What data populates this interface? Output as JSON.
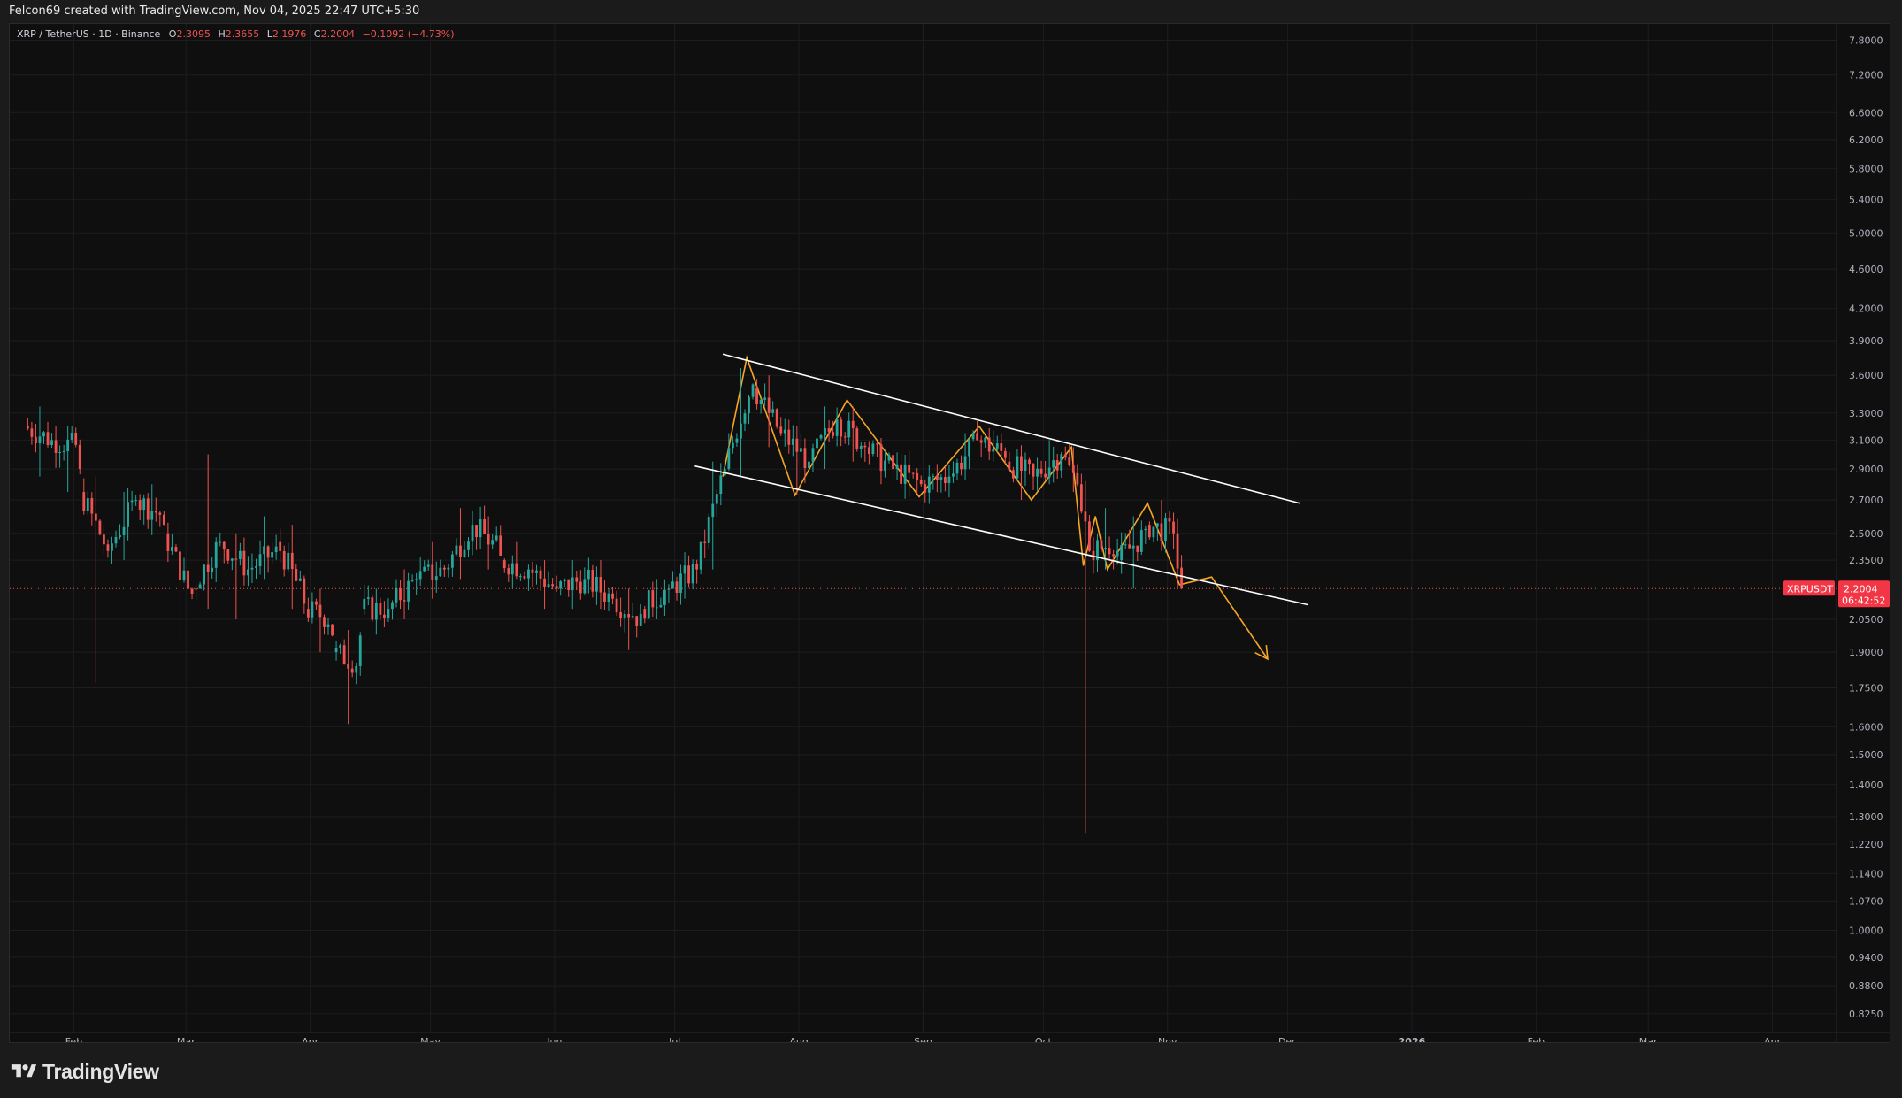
{
  "header": {
    "created_text": "Felcon69 created with TradingView.com, Nov 04, 2025 22:47 UTC+5:30"
  },
  "legend": {
    "symbol_text": "XRP / TetherUS · 1D · Binance",
    "o_label": "O",
    "o_value": "2.3095",
    "h_label": "H",
    "h_value": "2.3655",
    "l_label": "L",
    "l_value": "2.1976",
    "c_label": "C",
    "c_value": "2.2004",
    "change_text": "−0.1092 (−4.73%)"
  },
  "price_tag": {
    "symbol": "XRPUSDT",
    "price": "2.2004",
    "countdown": "06:42:52"
  },
  "footer": {
    "brand": "TradingView"
  },
  "colors": {
    "up": "#26a69a",
    "down": "#ef5350",
    "pattern": "#f5a623",
    "channel": "#ffffff",
    "price_line": "#ef5350"
  },
  "chart_data": {
    "type": "candlestick",
    "scale": "log",
    "symbol": "XRPUSDT",
    "interval": "1D",
    "exchange": "Binance",
    "x_tick_labels": [
      "Feb",
      "Mar",
      "Apr",
      "May",
      "Jun",
      "Jul",
      "Aug",
      "Sep",
      "Oct",
      "Nov",
      "Dec",
      "2026",
      "Feb",
      "Mar",
      "Apr"
    ],
    "x_tick_dates": [
      "2025-02-01",
      "2025-03-01",
      "2025-04-01",
      "2025-05-01",
      "2025-06-01",
      "2025-07-01",
      "2025-08-01",
      "2025-09-01",
      "2025-10-01",
      "2025-11-01",
      "2025-12-01",
      "2026-01-01",
      "2026-02-01",
      "2026-03-01",
      "2026-04-01"
    ],
    "y_tick_labels": [
      "7.8000",
      "7.2000",
      "6.6000",
      "6.2000",
      "5.8000",
      "5.4000",
      "5.0000",
      "4.6000",
      "4.2000",
      "3.9000",
      "3.6000",
      "3.3000",
      "3.1000",
      "2.9000",
      "2.7000",
      "2.5000",
      "2.3500",
      "2.0500",
      "1.9000",
      "1.7500",
      "1.6000",
      "1.5000",
      "1.4000",
      "1.3000",
      "1.2200",
      "1.1400",
      "1.0700",
      "1.0000",
      "0.9400",
      "0.8800",
      "0.8250"
    ],
    "y_range": [
      0.79,
      8.1
    ],
    "x_range": [
      "2025-01-16",
      "2026-04-17"
    ],
    "grid": true,
    "last_price": 2.2004,
    "candles_approx": [
      [
        "2025-01-20",
        3.2,
        3.35,
        2.85,
        3.1
      ],
      [
        "2025-01-27",
        3.1,
        3.2,
        2.75,
        3.05
      ],
      [
        "2025-02-03",
        2.75,
        2.85,
        1.77,
        2.4
      ],
      [
        "2025-02-10",
        2.4,
        2.75,
        2.35,
        2.7
      ],
      [
        "2025-02-17",
        2.7,
        2.8,
        2.5,
        2.6
      ],
      [
        "2025-02-24",
        2.5,
        2.55,
        1.95,
        2.15
      ],
      [
        "2025-03-03",
        2.2,
        3.0,
        2.1,
        2.45
      ],
      [
        "2025-03-10",
        2.45,
        2.5,
        2.05,
        2.3
      ],
      [
        "2025-03-17",
        2.3,
        2.6,
        2.25,
        2.4
      ],
      [
        "2025-03-24",
        2.45,
        2.55,
        2.1,
        2.15
      ],
      [
        "2025-03-31",
        2.1,
        2.2,
        1.9,
        2.05
      ],
      [
        "2025-04-07",
        1.9,
        2.0,
        1.61,
        1.85
      ],
      [
        "2025-04-14",
        2.1,
        2.2,
        2.05,
        2.1
      ],
      [
        "2025-04-21",
        2.1,
        2.3,
        2.05,
        2.25
      ],
      [
        "2025-04-28",
        2.25,
        2.45,
        2.15,
        2.3
      ],
      [
        "2025-05-05",
        2.3,
        2.65,
        2.25,
        2.55
      ],
      [
        "2025-05-12",
        2.55,
        2.6,
        2.3,
        2.4
      ],
      [
        "2025-05-19",
        2.35,
        2.45,
        2.25,
        2.3
      ],
      [
        "2025-05-26",
        2.3,
        2.35,
        2.1,
        2.2
      ],
      [
        "2025-06-02",
        2.2,
        2.35,
        2.1,
        2.25
      ],
      [
        "2025-06-09",
        2.25,
        2.35,
        2.1,
        2.15
      ],
      [
        "2025-06-16",
        2.15,
        2.2,
        1.91,
        2.05
      ],
      [
        "2025-06-23",
        2.1,
        2.25,
        2.05,
        2.2
      ],
      [
        "2025-06-30",
        2.2,
        2.35,
        2.15,
        2.3
      ],
      [
        "2025-07-07",
        2.3,
        2.95,
        2.3,
        2.9
      ],
      [
        "2025-07-14",
        2.9,
        3.66,
        2.85,
        3.55
      ],
      [
        "2025-07-21",
        3.5,
        3.6,
        3.05,
        3.15
      ],
      [
        "2025-07-28",
        3.15,
        3.2,
        2.73,
        2.95
      ],
      [
        "2025-08-04",
        2.95,
        3.35,
        2.9,
        3.25
      ],
      [
        "2025-08-11",
        3.25,
        3.35,
        2.95,
        3.05
      ],
      [
        "2025-08-18",
        3.05,
        3.1,
        2.8,
        2.9
      ],
      [
        "2025-08-25",
        2.9,
        3.0,
        2.72,
        2.8
      ],
      [
        "2025-09-01",
        2.8,
        2.9,
        2.75,
        2.85
      ],
      [
        "2025-09-08",
        2.85,
        3.15,
        2.85,
        3.1
      ],
      [
        "2025-09-15",
        3.1,
        3.17,
        2.95,
        3.0
      ],
      [
        "2025-09-22",
        2.95,
        3.0,
        2.7,
        2.85
      ],
      [
        "2025-09-29",
        2.85,
        3.1,
        2.8,
        3.0
      ],
      [
        "2025-10-06",
        3.0,
        3.05,
        2.75,
        2.8
      ],
      [
        "2025-10-10",
        2.8,
        2.82,
        1.25,
        2.4
      ],
      [
        "2025-10-13",
        2.4,
        2.65,
        2.3,
        2.45
      ],
      [
        "2025-10-20",
        2.35,
        2.6,
        2.2,
        2.5
      ],
      [
        "2025-10-27",
        2.55,
        2.7,
        2.4,
        2.5
      ],
      [
        "2025-11-03",
        2.5,
        2.55,
        2.2,
        2.3
      ],
      [
        "2025-11-04",
        2.3095,
        2.3655,
        2.1976,
        2.2004
      ]
    ],
    "pattern_zigzag": [
      [
        "2025-07-13",
        2.85
      ],
      [
        "2025-07-19",
        3.75
      ],
      [
        "2025-07-31",
        2.73
      ],
      [
        "2025-08-13",
        3.4
      ],
      [
        "2025-08-31",
        2.72
      ],
      [
        "2025-09-15",
        3.2
      ],
      [
        "2025-09-28",
        2.7
      ],
      [
        "2025-10-08",
        3.05
      ],
      [
        "2025-10-11",
        2.32
      ],
      [
        "2025-10-14",
        2.6
      ],
      [
        "2025-10-17",
        2.3
      ],
      [
        "2025-10-27",
        2.68
      ],
      [
        "2025-11-04",
        2.22
      ],
      [
        "2025-11-12",
        2.26
      ],
      [
        "2025-11-26",
        1.87
      ]
    ],
    "channel_upper": [
      [
        "2025-07-13",
        3.78
      ],
      [
        "2025-12-04",
        2.68
      ]
    ],
    "channel_lower": [
      [
        "2025-07-06",
        2.92
      ],
      [
        "2025-12-06",
        2.12
      ]
    ]
  }
}
